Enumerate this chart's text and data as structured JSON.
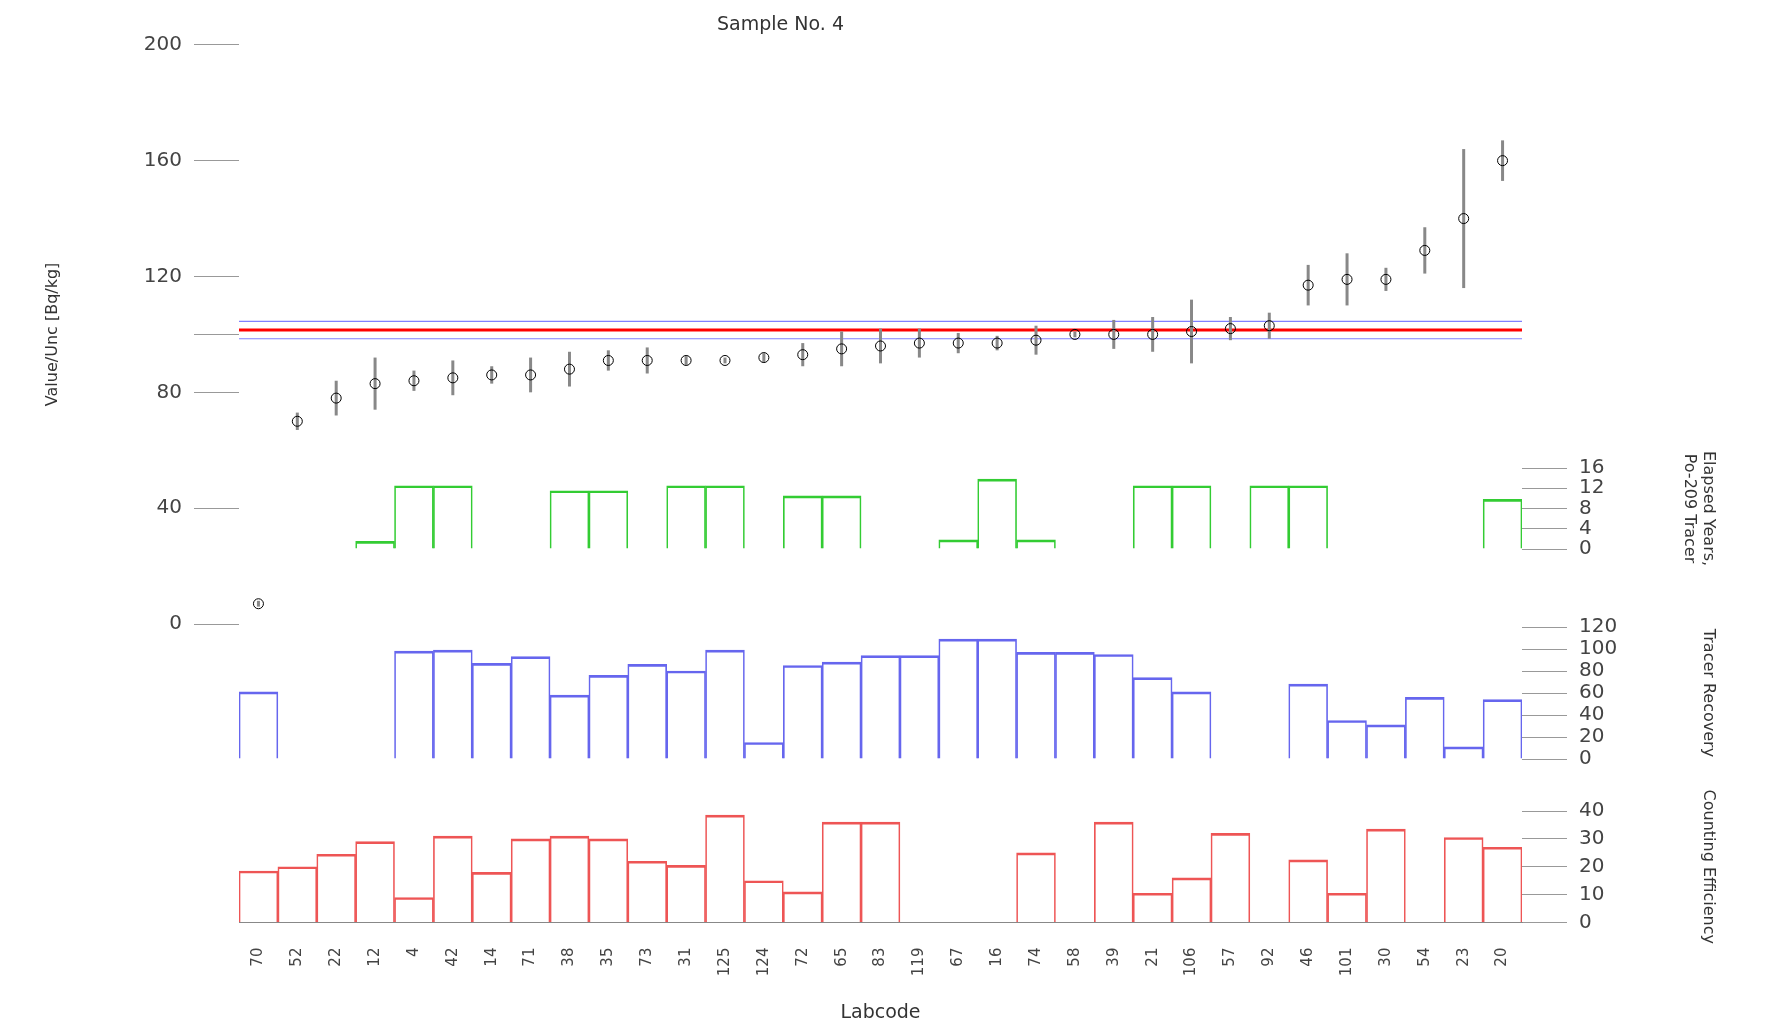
{
  "chart_data": [
    {
      "type": "scatter",
      "title": "Sample No. 4",
      "ylabel": "Value/Unc [Bq/kg]",
      "marker": "circle",
      "tick_labels": "y",
      "grid": false,
      "legend": false,
      "categories": [
        "70",
        "52",
        "22",
        "12",
        "4",
        "42",
        "14",
        "71",
        "38",
        "35",
        "73",
        "31",
        "125",
        "124",
        "72",
        "65",
        "83",
        "119",
        "67",
        "16",
        "74",
        "58",
        "39",
        "21",
        "106",
        "57",
        "92",
        "46",
        "101",
        "30",
        "54",
        "23",
        "20"
      ],
      "ylim": [
        0,
        200
      ],
      "yticks": [
        0,
        40,
        80,
        {
          "value": 100,
          "label": null
        },
        120,
        160,
        200
      ],
      "series": [
        {
          "color": "#000000",
          "values": [
            7,
            70,
            78,
            83,
            84,
            85,
            86,
            86,
            88,
            91,
            91,
            91,
            91,
            92,
            93,
            95,
            96,
            97,
            97,
            97,
            98,
            100,
            100,
            100,
            101,
            102,
            103,
            117,
            119,
            119,
            129,
            140,
            160
          ],
          "errors": [
            1,
            3,
            6,
            9,
            3.5,
            6,
            3,
            6,
            6,
            3.5,
            4.5,
            1.5,
            1,
            1.5,
            4,
            6,
            6,
            5,
            3.5,
            2.5,
            5,
            1,
            5,
            6,
            11,
            4,
            4.5,
            7,
            9,
            4,
            8,
            24,
            7
          ]
        }
      ],
      "ref_lines": [
        {
          "axis": "y",
          "value": 101.5,
          "color": "#ff0000"
        },
        {
          "axis": "y",
          "value": 104.5,
          "color": "#8080ff"
        },
        {
          "axis": "y",
          "value": 98.5,
          "color": "#8080ff"
        }
      ]
    },
    {
      "type": "bar",
      "ylabel": "Elapsed Years,\nPo-209 Tracer",
      "tick_labels": "y",
      "grid": false,
      "legend": false,
      "categories": [
        "70",
        "52",
        "22",
        "12",
        "4",
        "42",
        "14",
        "71",
        "38",
        "35",
        "73",
        "31",
        "125",
        "124",
        "72",
        "65",
        "83",
        "119",
        "67",
        "16",
        "74",
        "58",
        "39",
        "21",
        "106",
        "57",
        "92",
        "46",
        "101",
        "30",
        "54",
        "23",
        "20"
      ],
      "ylim": [
        0,
        16
      ],
      "yticks": [
        0,
        4,
        8,
        12,
        16
      ],
      "series": [
        {
          "color": "#33cc33",
          "values": [
            null,
            null,
            null,
            1.5,
            12.5,
            12.5,
            0,
            0,
            11.5,
            11.5,
            null,
            12.5,
            12.5,
            null,
            10.5,
            10.5,
            null,
            null,
            1.8,
            13.8,
            1.8,
            null,
            null,
            12.5,
            12.5,
            null,
            12.5,
            12.5,
            null,
            null,
            null,
            null,
            9.8
          ]
        }
      ]
    },
    {
      "type": "bar",
      "ylabel": "Tracer Recovery",
      "tick_labels": "y",
      "grid": false,
      "legend": false,
      "categories": [
        "70",
        "52",
        "22",
        "12",
        "4",
        "42",
        "14",
        "71",
        "38",
        "35",
        "73",
        "31",
        "125",
        "124",
        "72",
        "65",
        "83",
        "119",
        "67",
        "16",
        "74",
        "58",
        "39",
        "21",
        "106",
        "57",
        "92",
        "46",
        "101",
        "30",
        "54",
        "23",
        "20"
      ],
      "ylim": [
        0,
        120
      ],
      "yticks": [
        0,
        20,
        40,
        60,
        80,
        100,
        120
      ],
      "series": [
        {
          "color": "#6666ee",
          "values": [
            61,
            0,
            0,
            0,
            98,
            99,
            87,
            93,
            58,
            76,
            86,
            80,
            99,
            15,
            85,
            88,
            94,
            94,
            109,
            109,
            97,
            97,
            95,
            74,
            61,
            0,
            0,
            68,
            35,
            31,
            56,
            11,
            54
          ]
        }
      ]
    },
    {
      "type": "bar",
      "ylabel": "Counting Efficiency",
      "xlabel": "Labcode",
      "grid": false,
      "legend": false,
      "categories": [
        "70",
        "52",
        "22",
        "12",
        "4",
        "42",
        "14",
        "71",
        "38",
        "35",
        "73",
        "31",
        "125",
        "124",
        "72",
        "65",
        "83",
        "119",
        "67",
        "16",
        "74",
        "58",
        "39",
        "21",
        "106",
        "57",
        "92",
        "46",
        "101",
        "30",
        "54",
        "23",
        "20"
      ],
      "ylim": [
        0,
        40
      ],
      "yticks": [
        0,
        10,
        20,
        30,
        40
      ],
      "series": [
        {
          "color": "#ee5555",
          "values": [
            18.5,
            20,
            24.5,
            29,
            9,
            31,
            18,
            30,
            31,
            30,
            22,
            20.5,
            38.5,
            15,
            11,
            36,
            36,
            null,
            null,
            null,
            25,
            null,
            36,
            10.5,
            16,
            32,
            null,
            22.5,
            10.5,
            33.5,
            null,
            30.5,
            27
          ]
        }
      ]
    }
  ]
}
